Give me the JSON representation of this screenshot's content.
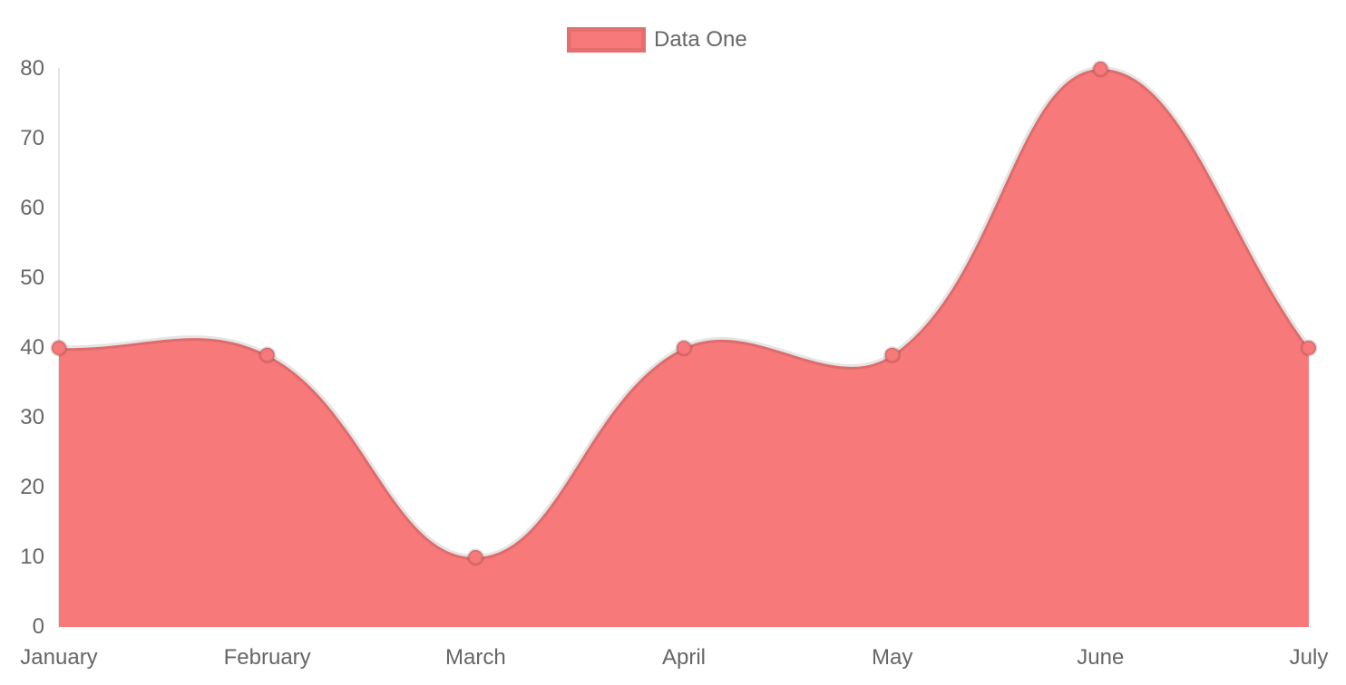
{
  "chart": {
    "legend": {
      "label": "Data One",
      "position": "top"
    },
    "colors": {
      "fill": "#f87979",
      "line": "rgba(0,0,0,0.10)",
      "point_fill": "#f87979",
      "point_border": "rgba(0,0,0,0.13)",
      "axis": "rgba(0,0,0,0.10)",
      "legend_border": "rgba(0,0,0,0.08)",
      "tick_text": "#666666",
      "background": "#ffffff"
    }
  },
  "chart_data": {
    "type": "area",
    "title": "",
    "xlabel": "",
    "ylabel": "",
    "categories": [
      "January",
      "February",
      "March",
      "April",
      "May",
      "June",
      "July"
    ],
    "series": [
      {
        "name": "Data One",
        "values": [
          40,
          39,
          10,
          40,
          39,
          80,
          40
        ]
      }
    ],
    "ylim": [
      0,
      80
    ],
    "yticks": [
      0,
      10,
      20,
      30,
      40,
      50,
      60,
      70,
      80
    ],
    "grid": false,
    "legend_position": "top",
    "line_tension": 0.4
  }
}
